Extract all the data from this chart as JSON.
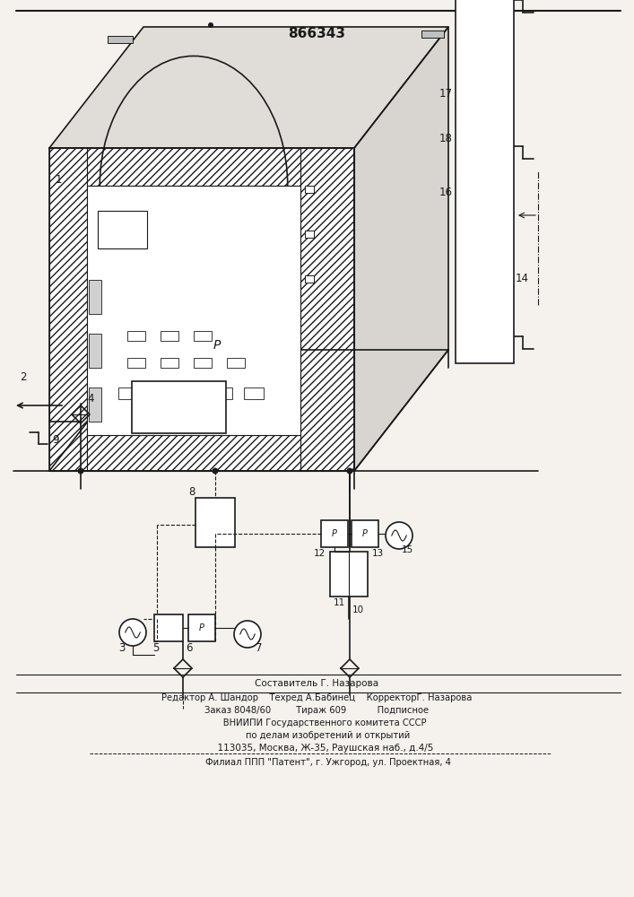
{
  "title": "866343",
  "bg_color": "#f5f2ee",
  "line_color": "#1a1a1a",
  "footer_lines": [
    "Составитель Г. Назарова",
    "Редактор А. Шандор    Техред А.Бабинец    КорректорГ. Назарова",
    "Заказ 8048/60         Тираж 609           Подписное",
    "      ВНИИПИ Государственного комитета СССР",
    "        по делам изобретений и открытий",
    "      113035, Москва, Ж-35, Раушская наб., д.4/5",
    "        Филиал ППП \"Патент\", г. Ужгород, ул. Проектная, 4"
  ]
}
